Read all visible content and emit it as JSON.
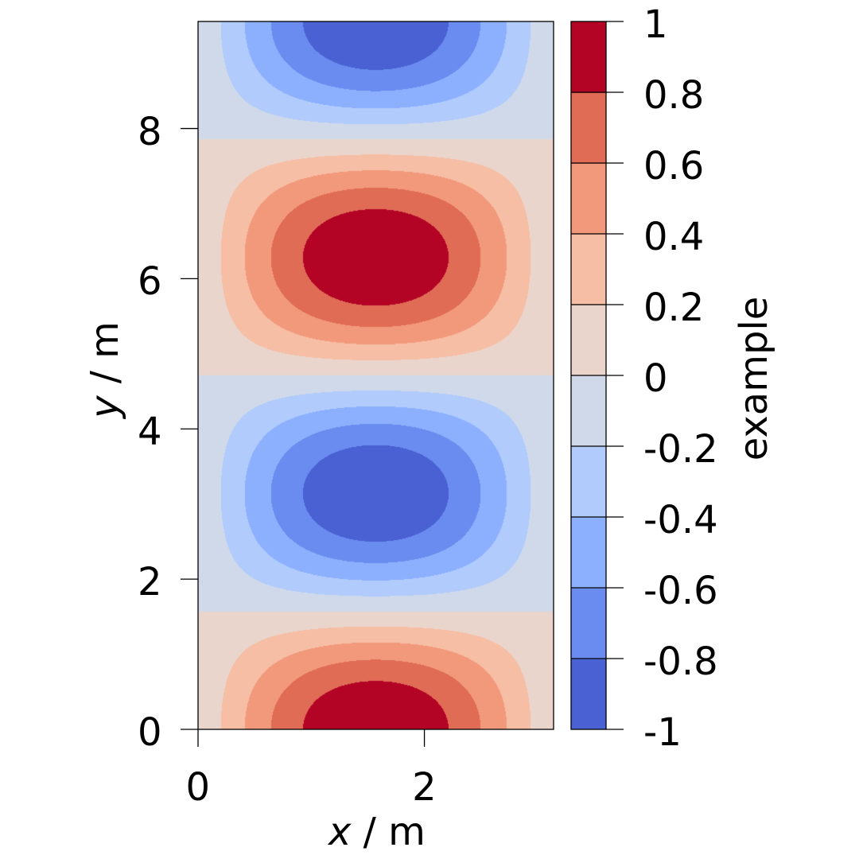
{
  "chart_data": {
    "type": "contourf",
    "title": "",
    "function": "z = sin(x) * cos(y)",
    "xlabel": {
      "var": "x",
      "unit": " / m"
    },
    "ylabel": {
      "var": "y",
      "unit": " / m"
    },
    "xlim": [
      0,
      3.14159
    ],
    "ylim": [
      0,
      9.42478
    ],
    "xticks": [
      0,
      2
    ],
    "xtick_labels": [
      "0",
      "2"
    ],
    "yticks": [
      0,
      2,
      4,
      6,
      8
    ],
    "ytick_labels": [
      "0",
      "2",
      "4",
      "6",
      "8"
    ],
    "colorbar": {
      "label": "example",
      "levels": [
        -1,
        -0.8,
        -0.6,
        -0.4,
        -0.2,
        0,
        0.2,
        0.4,
        0.6,
        0.8,
        1
      ],
      "tick_labels": [
        "-1",
        "-0.8",
        "-0.6",
        "-0.4",
        "-0.2",
        "0",
        "0.2",
        "0.4",
        "0.6",
        "0.8",
        "1"
      ],
      "colors": [
        "#4961d2",
        "#6a8bef",
        "#8db0fe",
        "#b0cbfc",
        "#cfd9ea",
        "#ead5cc",
        "#f6bea4",
        "#f2997c",
        "#e06c56",
        "#b40426"
      ],
      "colormap": "coolwarm"
    },
    "grid": false,
    "legend": "colorbar-right"
  }
}
